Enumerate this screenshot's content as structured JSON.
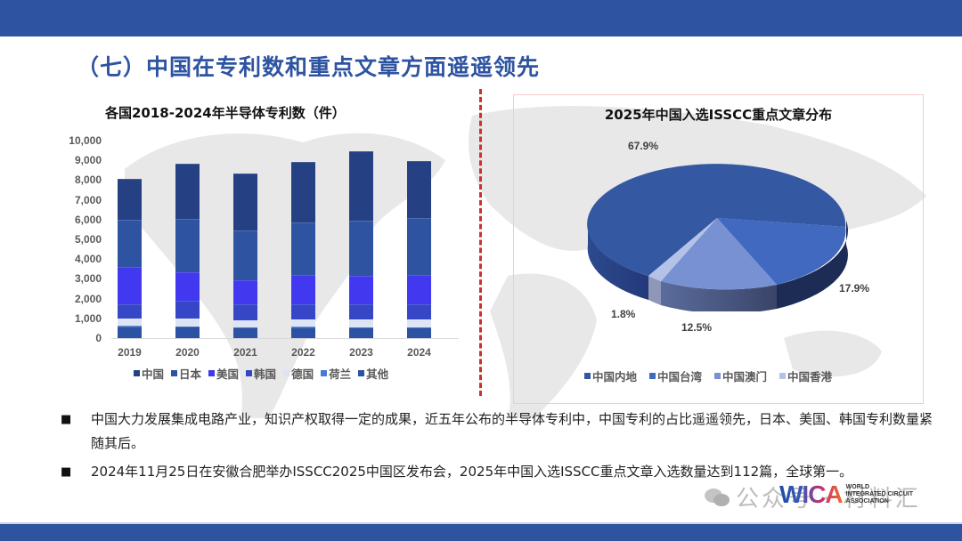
{
  "header": {
    "title": "（七）中国在专利数和重点文章方面遥遥领先"
  },
  "colors": {
    "brand": "#2e54a1",
    "divider": "#c8332f",
    "series": {
      "中国": "#254183",
      "日本": "#2e54a1",
      "美国": "#4138f0",
      "韩国": "#3547c6",
      "德国": "#dde4f6",
      "荷兰": "#4a78d6",
      "其他": "#2c53a3"
    },
    "pie": [
      "#3558a3",
      "#4169bf",
      "#7891d3",
      "#b4c2e8"
    ]
  },
  "chart_data": [
    {
      "type": "bar",
      "stacked": true,
      "title": "各国2018-2024年半导体专利数（件）",
      "xlabel": "",
      "ylabel": "",
      "ylim": [
        0,
        10000
      ],
      "yticks": [
        "10,000",
        "9,000",
        "8,000",
        "7,000",
        "6,000",
        "5,000",
        "4,000",
        "3,000",
        "2,000",
        "1,000",
        "0"
      ],
      "grid": false,
      "legend_position": "bottom",
      "categories": [
        "2019",
        "2020",
        "2021",
        "2022",
        "2023",
        "2024"
      ],
      "series": [
        {
          "name": "其他",
          "values": [
            600,
            580,
            530,
            560,
            540,
            540
          ]
        },
        {
          "name": "荷兰",
          "values": [
            20,
            20,
            20,
            20,
            20,
            20
          ]
        },
        {
          "name": "德国",
          "values": [
            380,
            400,
            350,
            370,
            390,
            390
          ]
        },
        {
          "name": "韩国",
          "values": [
            700,
            900,
            800,
            750,
            750,
            750
          ]
        },
        {
          "name": "美国",
          "values": [
            1900,
            1450,
            1250,
            1500,
            1450,
            1500
          ]
        },
        {
          "name": "日本",
          "values": [
            2400,
            2700,
            2500,
            2650,
            2800,
            2900
          ]
        },
        {
          "name": "中国",
          "values": [
            2050,
            2800,
            2900,
            3050,
            3500,
            2850
          ]
        }
      ],
      "totals": [
        8050,
        8850,
        8350,
        8900,
        9450,
        8950
      ],
      "legend": [
        "中国",
        "日本",
        "美国",
        "韩国",
        "德国",
        "荷兰",
        "其他"
      ]
    },
    {
      "type": "pie",
      "title": "2025年中国入选ISSCC重点文章分布",
      "style": "3d",
      "legend_position": "bottom",
      "categories": [
        "中国内地",
        "中国台湾",
        "中国澳门",
        "中国香港"
      ],
      "values": [
        67.9,
        17.9,
        12.5,
        1.8
      ],
      "labels": [
        "67.9%",
        "17.9%",
        "12.5%",
        "1.8%"
      ]
    }
  ],
  "bar_legend": [
    "中国",
    "日本",
    "美国",
    "韩国",
    "德国",
    "荷兰",
    "其他"
  ],
  "pie_legend": [
    "中国内地",
    "中国台湾",
    "中国澳门",
    "中国香港"
  ],
  "bullets": [
    "中国大力发展集成电路产业，知识产权取得一定的成果，近五年公布的半导体专利中，中国专利的占比遥遥领先，日本、美国、韩国专利数量紧随其后。",
    "2024年11月25日在安徽合肥举办ISSCC2025中国区发布会，2025年中国入选ISSCC重点文章入选数量达到112篇，全球第一。"
  ],
  "watermark": {
    "text": "公众号 · 材料汇"
  },
  "logo": {
    "mark": "WICA",
    "line1": "WORLD",
    "line2": "INTEGRATED CIRCUIT",
    "line3": "ASSOCIATION"
  }
}
